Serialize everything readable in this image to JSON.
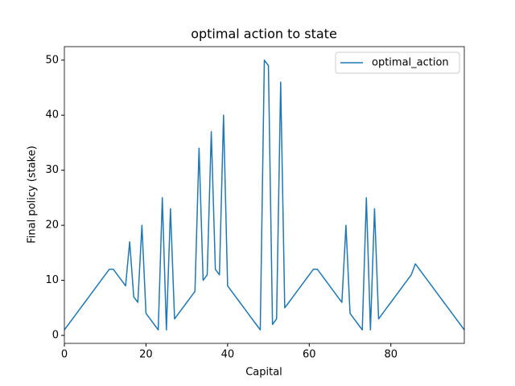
{
  "chart_data": {
    "type": "line",
    "title": "optimal action to state",
    "x_label": "Capital",
    "y_label": "Final policy (stake)",
    "x": [
      0,
      1,
      2,
      3,
      4,
      5,
      6,
      7,
      8,
      9,
      10,
      11,
      12,
      13,
      14,
      15,
      16,
      17,
      18,
      19,
      20,
      21,
      22,
      23,
      24,
      25,
      26,
      27,
      28,
      29,
      30,
      31,
      32,
      33,
      34,
      35,
      36,
      37,
      38,
      39,
      40,
      41,
      42,
      43,
      44,
      45,
      46,
      47,
      48,
      49,
      50,
      51,
      52,
      53,
      54,
      55,
      56,
      57,
      58,
      59,
      60,
      61,
      62,
      63,
      64,
      65,
      66,
      67,
      68,
      69,
      70,
      71,
      72,
      73,
      74,
      75,
      76,
      77,
      78,
      79,
      80,
      81,
      82,
      83,
      84,
      85,
      86,
      87,
      88,
      89,
      90,
      91,
      92,
      93,
      94,
      95,
      96,
      97,
      98
    ],
    "series": [
      {
        "name": "optimal_action",
        "color": "#1f77b4",
        "values": [
          1,
          2,
          3,
          4,
          5,
          6,
          7,
          8,
          9,
          10,
          11,
          12,
          12,
          11,
          10,
          9,
          17,
          7,
          6,
          20,
          4,
          3,
          2,
          1,
          25,
          1,
          23,
          3,
          4,
          5,
          6,
          7,
          8,
          34,
          10,
          11,
          37,
          12,
          11,
          40,
          9,
          8,
          7,
          6,
          5,
          4,
          3,
          2,
          1,
          50,
          49,
          2,
          3,
          46,
          5,
          6,
          7,
          8,
          9,
          10,
          11,
          12,
          12,
          11,
          10,
          9,
          8,
          7,
          6,
          20,
          4,
          3,
          2,
          1,
          25,
          1,
          23,
          3,
          4,
          5,
          6,
          7,
          8,
          9,
          10,
          11,
          13,
          12,
          11,
          10,
          9,
          8,
          7,
          6,
          5,
          4,
          3,
          2,
          1
        ]
      }
    ],
    "xlim": [
      0,
      98
    ],
    "xticks": [
      0,
      20,
      40,
      60,
      80
    ],
    "ylim": [
      -1.45,
      52.45
    ],
    "yticks": [
      0,
      10,
      20,
      30,
      40,
      50
    ],
    "legend": "upper right",
    "grid": false
  }
}
